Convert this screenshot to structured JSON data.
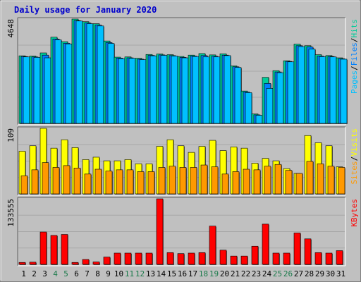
{
  "chart_data": {
    "type": "bar",
    "title": "Daily usage for January 2020",
    "categories": [
      "1",
      "2",
      "3",
      "4",
      "5",
      "6",
      "7",
      "8",
      "9",
      "10",
      "11",
      "12",
      "13",
      "14",
      "15",
      "16",
      "17",
      "18",
      "19",
      "20",
      "21",
      "22",
      "23",
      "24",
      "25",
      "26",
      "27",
      "28",
      "29",
      "30",
      "31"
    ],
    "weekend_days": [
      "4",
      "5",
      "11",
      "12",
      "18",
      "19",
      "25",
      "26"
    ],
    "colors": {
      "title": "#0000cc",
      "weekday_label": "#000000",
      "weekend_label": "#1a7a4a",
      "hits": "#00cc99",
      "files": "#0080ff",
      "pages": "#00c0ff",
      "visits": "#ffff00",
      "sites": "#ff9900",
      "kbytes": "#ff0000",
      "panel_bg": "#c0c0c0"
    },
    "panels": [
      {
        "name": "hits-files-pages",
        "ymax_label": "4648",
        "ymax": 4648,
        "legend": [
          {
            "text": "Pages",
            "color": "#00c0ff"
          },
          {
            "text": "/",
            "color": "#000000"
          },
          {
            "text": "Files",
            "color": "#0080ff"
          },
          {
            "text": "/",
            "color": "#000000"
          },
          {
            "text": "Hits",
            "color": "#00cc99"
          }
        ],
        "series": [
          {
            "name": "Hits",
            "color": "#00cc99",
            "values": [
              3010,
              3000,
              3140,
              3840,
              3640,
              4648,
              4530,
              4440,
              3670,
              2950,
              2960,
              2900,
              3070,
              3090,
              3060,
              2980,
              3040,
              3110,
              3050,
              3100,
              2560,
              1440,
              420,
              2050,
              2350,
              2790,
              3530,
              3460,
              3060,
              3020,
              2920
            ]
          },
          {
            "name": "Files",
            "color": "#0080ff",
            "values": [
              2980,
              2960,
              3040,
              3760,
              3570,
              4580,
              4470,
              4380,
              3600,
              2910,
              2920,
              2860,
              3030,
              3050,
              3020,
              2940,
              3000,
              3020,
              2990,
              3040,
              2520,
              1400,
              380,
              1780,
              2290,
              2760,
              3460,
              3400,
              3000,
              2980,
              2880
            ]
          },
          {
            "name": "Pages",
            "color": "#00c0ff",
            "values": [
              2960,
              2940,
              2920,
              3720,
              3540,
              4560,
              4440,
              4340,
              3560,
              2880,
              2900,
              2840,
              3010,
              3030,
              3000,
              2920,
              2980,
              2960,
              2960,
              3020,
              2490,
              1370,
              360,
              1560,
              2260,
              2740,
              3420,
              3310,
              2970,
              2960,
              2860
            ]
          }
        ]
      },
      {
        "name": "visits-sites",
        "ymax_label": "109",
        "ymax": 109,
        "legend": [
          {
            "text": "Sites",
            "color": "#ff9900"
          },
          {
            "text": "/",
            "color": "#000000"
          },
          {
            "text": "Visits",
            "color": "#ffff00"
          }
        ],
        "series": [
          {
            "name": "Visits",
            "color": "#ffff00",
            "values": [
              71,
              80,
              109,
              76,
              90,
              77,
              57,
              61,
              55,
              55,
              57,
              50,
              50,
              79,
              90,
              80,
              69,
              79,
              89,
              72,
              78,
              76,
              51,
              59,
              55,
              42,
              34,
              97,
              85,
              80,
              45
            ]
          },
          {
            "name": "Sites",
            "color": "#ff9900",
            "values": [
              30,
              40,
              52,
              44,
              47,
              43,
              33,
              41,
              38,
              40,
              40,
              37,
              37,
              44,
              46,
              44,
              44,
              48,
              45,
              33,
              37,
              41,
              40,
              46,
              49,
              39,
              34,
              54,
              50,
              46,
              44
            ]
          }
        ]
      },
      {
        "name": "kbytes",
        "ymax_label": "133555",
        "ymax": 133555,
        "legend": [
          {
            "text": "KBytes",
            "color": "#ff0000"
          }
        ],
        "series": [
          {
            "name": "KBytes",
            "color": "#ff0000",
            "values": [
              4000,
              4500,
              66000,
              59000,
              61000,
              4000,
              10000,
              5000,
              15000,
              23000,
              23000,
              23000,
              23000,
              133555,
              24000,
              22000,
              23000,
              24000,
              78000,
              29000,
              17000,
              17000,
              37000,
              82000,
              23000,
              23000,
              64000,
              52000,
              24000,
              23000,
              28000
            ]
          }
        ]
      }
    ]
  }
}
